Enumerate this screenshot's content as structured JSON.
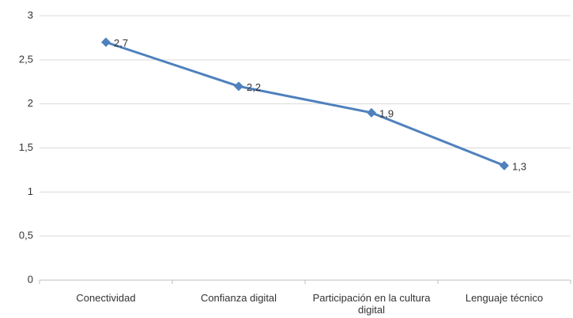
{
  "chart_data": {
    "type": "line",
    "categories": [
      "Conectividad",
      "Confianza digital",
      "Participación en la cultura digital",
      "Lenguaje técnico"
    ],
    "values": [
      2.7,
      2.2,
      1.9,
      1.3
    ],
    "value_labels": [
      "2,7",
      "2,2",
      "1,9",
      "1,3"
    ],
    "color": "#4f81bd",
    "ylim": [
      0,
      3
    ],
    "yticks": [
      0,
      {
        "value": 0.5,
        "label": "0,5"
      },
      1,
      {
        "value": 1.5,
        "label": "1,5"
      },
      2,
      {
        "value": 2.5,
        "label": "2,5"
      },
      3
    ],
    "grid": true
  }
}
